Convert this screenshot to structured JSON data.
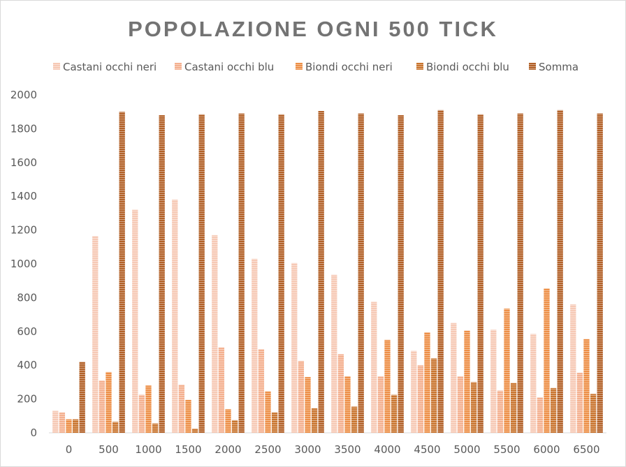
{
  "chart_data": {
    "type": "bar",
    "title": "POPOLAZIONE OGNI 500 TICK",
    "xlabel": "",
    "ylabel": "",
    "ylim": [
      0,
      2000
    ],
    "yticks": [
      0,
      200,
      400,
      600,
      800,
      1000,
      1200,
      1400,
      1600,
      1800,
      2000
    ],
    "grid": false,
    "legend_position": "top",
    "categories": [
      "0",
      "500",
      "1000",
      "1500",
      "2000",
      "2500",
      "3000",
      "3500",
      "4000",
      "4500",
      "5000",
      "5500",
      "6000",
      "6500"
    ],
    "series": [
      {
        "name": "Castani occhi neri",
        "color": "#f6c9b5",
        "values": [
          130,
          1165,
          1320,
          1380,
          1170,
          1030,
          1005,
          935,
          775,
          485,
          650,
          610,
          585,
          760
        ]
      },
      {
        "name": "Castani occhi blu",
        "color": "#f4b08f",
        "values": [
          120,
          310,
          225,
          285,
          505,
          495,
          425,
          465,
          335,
          400,
          335,
          250,
          210,
          355
        ]
      },
      {
        "name": "Biondi occhi neri",
        "color": "#ed8f47",
        "values": [
          80,
          360,
          280,
          195,
          140,
          245,
          330,
          335,
          550,
          595,
          605,
          735,
          855,
          555
        ]
      },
      {
        "name": "Biondi occhi blu",
        "color": "#c9752f",
        "values": [
          80,
          65,
          55,
          25,
          75,
          120,
          145,
          155,
          225,
          440,
          300,
          295,
          265,
          230
        ]
      },
      {
        "name": "Somma",
        "color": "#b26128",
        "values": [
          420,
          1900,
          1880,
          1885,
          1890,
          1885,
          1905,
          1890,
          1880,
          1910,
          1885,
          1890,
          1910,
          1890
        ]
      }
    ]
  }
}
